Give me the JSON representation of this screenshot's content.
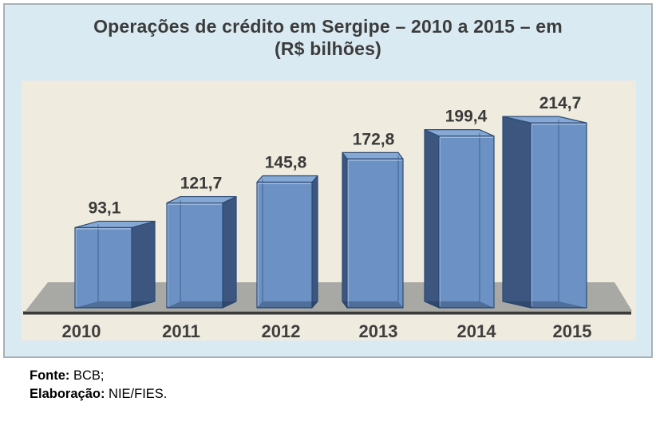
{
  "header": {
    "title_line1": "Operações de crédito em Sergipe – 2010 a 2015 – em",
    "title_line2": "(R$ bilhões)"
  },
  "chart_data": {
    "type": "bar",
    "style": "3d-column",
    "title": "Operações de crédito em Sergipe – 2010 a 2015 – em (R$ bilhões)",
    "categories": [
      "2010",
      "2011",
      "2012",
      "2013",
      "2014",
      "2015"
    ],
    "values": [
      93.1,
      121.7,
      145.8,
      172.8,
      199.4,
      214.7
    ],
    "value_labels": [
      "93,1",
      "121,7",
      "145,8",
      "172,8",
      "199,4",
      "214,7"
    ],
    "unit": "R$ bilhões",
    "xlabel": "",
    "ylabel": "",
    "ylim": [
      0,
      240
    ],
    "grid": false,
    "legend": "none"
  },
  "colors": {
    "bar_front": "#6C91C4",
    "bar_top": "#86A8D4",
    "bar_side": "#3D5680",
    "bar_outline": "#2C4A74",
    "floor": "#A8A8A5",
    "axis_line": "#3A3A38",
    "plot_bg": "#EFEBDF",
    "card_bg": "#D9EAF2",
    "title_text": "#3C3C3C",
    "label_text": "#3A3A3A"
  },
  "footer": {
    "fonte_label": "Fonte:",
    "fonte_value": "BCB;",
    "elaboracao_label": "Elaboração:",
    "elaboracao_value": "NIE/FIES."
  }
}
